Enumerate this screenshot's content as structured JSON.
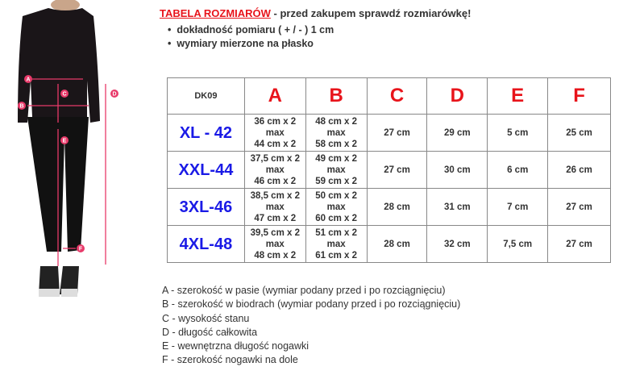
{
  "header": {
    "brand": "TABELA ROZMIARÓW",
    "text": " - przed zakupem sprawdź rozmiarówkę!"
  },
  "bullets": [
    "dokładność pomiaru ( + / - ) 1 cm",
    "wymiary mierzone na płasko"
  ],
  "figure_labels": [
    "A",
    "B",
    "C",
    "D",
    "E",
    "F"
  ],
  "table": {
    "headers": [
      "DK09",
      "A",
      "B",
      "C",
      "D",
      "E",
      "F"
    ],
    "rows": [
      {
        "size": "XL - 42",
        "a": [
          "36 cm x 2",
          "max",
          "44 cm x 2"
        ],
        "b": [
          "48 cm x 2",
          "max",
          "58 cm x 2"
        ],
        "c": "27 cm",
        "d": "29 cm",
        "e": "5 cm",
        "f": "25 cm"
      },
      {
        "size": "XXL-44",
        "a": [
          "37,5 cm x 2",
          "max",
          "46 cm x 2"
        ],
        "b": [
          "49 cm x 2",
          "max",
          "59 cm x 2"
        ],
        "c": "27 cm",
        "d": "30 cm",
        "e": "6 cm",
        "f": "26 cm"
      },
      {
        "size": "3XL-46",
        "a": [
          "38,5 cm x 2",
          "max",
          "47 cm x 2"
        ],
        "b": [
          "50 cm x 2",
          "max",
          "60 cm x 2"
        ],
        "c": "28 cm",
        "d": "31 cm",
        "e": "7 cm",
        "f": "27 cm"
      },
      {
        "size": "4XL-48",
        "a": [
          "39,5 cm x 2",
          "max",
          "48 cm x 2"
        ],
        "b": [
          "51 cm x 2",
          "max",
          "61 cm x 2"
        ],
        "c": "28 cm",
        "d": "32 cm",
        "e": "7,5 cm",
        "f": "27 cm"
      }
    ]
  },
  "legend": [
    "A - szerokość w pasie (wymiar podany przed i po rozciągnięciu)",
    "B - szerokość w biodrach (wymiar podany przed i po rozciągnięciu)",
    "C - wysokość stanu",
    "D - długość całkowita",
    "E - wewnętrzna długość nogawki",
    "F - szerokość nogawki na dole"
  ],
  "colors": {
    "accent": "#e8141b",
    "size": "#1a1ae6",
    "marker": "#e83a6a"
  }
}
